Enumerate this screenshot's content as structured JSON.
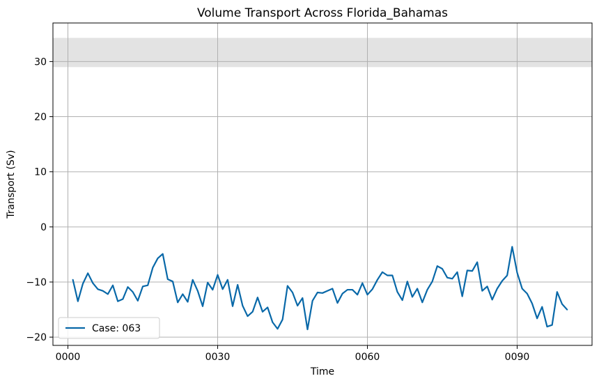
{
  "chart_data": {
    "type": "line",
    "title": "Volume Transport Across Florida_Bahamas",
    "xlabel": "Time",
    "ylabel": "Transport (Sv)",
    "xlim": [
      -3,
      105
    ],
    "ylim": [
      -21.5,
      37
    ],
    "x_ticks": [
      0,
      30,
      60,
      90
    ],
    "x_tick_labels": [
      "0000",
      "0030",
      "0060",
      "0090"
    ],
    "y_ticks": [
      -20,
      -10,
      0,
      10,
      20,
      30
    ],
    "y_tick_labels": [
      "−20",
      "−10",
      "0",
      "10",
      "20",
      "30"
    ],
    "grid": true,
    "legend_position": "lower-left",
    "band": {
      "y_from": 29,
      "y_to": 34.3,
      "color": "#e3e3e3"
    },
    "series": [
      {
        "name": "Case: 063",
        "color": "#0868a8",
        "x": [
          1,
          2,
          3,
          4,
          5,
          6,
          7,
          8,
          9,
          10,
          11,
          12,
          13,
          14,
          15,
          16,
          17,
          18,
          19,
          20,
          21,
          22,
          23,
          24,
          25,
          26,
          27,
          28,
          29,
          30,
          31,
          32,
          33,
          34,
          35,
          36,
          37,
          38,
          39,
          40,
          41,
          42,
          43,
          44,
          45,
          46,
          47,
          48,
          49,
          50,
          51,
          52,
          53,
          54,
          55,
          56,
          57,
          58,
          59,
          60,
          61,
          62,
          63,
          64,
          65,
          66,
          67,
          68,
          69,
          70,
          71,
          72,
          73,
          74,
          75,
          76,
          77,
          78,
          79,
          80,
          81,
          82,
          83,
          84,
          85,
          86,
          87,
          88,
          89,
          90,
          91,
          92,
          93,
          94,
          95,
          96,
          97,
          98,
          99,
          100
        ],
        "values": [
          -9.6,
          -13.5,
          -10.3,
          -8.4,
          -10.2,
          -11.3,
          -11.6,
          -12.2,
          -10.6,
          -13.5,
          -13.1,
          -10.9,
          -11.8,
          -13.4,
          -10.8,
          -10.6,
          -7.4,
          -5.7,
          -4.9,
          -9.5,
          -9.9,
          -13.7,
          -12.2,
          -13.6,
          -9.6,
          -11.6,
          -14.4,
          -10.1,
          -11.4,
          -8.7,
          -11.3,
          -9.6,
          -14.4,
          -10.5,
          -14.3,
          -16.2,
          -15.4,
          -12.8,
          -15.4,
          -14.6,
          -17.3,
          -18.5,
          -16.8,
          -10.7,
          -11.9,
          -14.3,
          -12.9,
          -18.6,
          -13.4,
          -11.9,
          -12.0,
          -11.6,
          -11.2,
          -13.8,
          -12.1,
          -11.4,
          -11.4,
          -12.3,
          -10.2,
          -12.3,
          -11.3,
          -9.6,
          -8.2,
          -8.8,
          -8.8,
          -11.8,
          -13.3,
          -9.9,
          -12.7,
          -11.2,
          -13.7,
          -11.4,
          -9.9,
          -7.1,
          -7.6,
          -9.2,
          -9.4,
          -8.2,
          -12.6,
          -7.9,
          -8.0,
          -6.4,
          -11.6,
          -10.8,
          -13.2,
          -11.2,
          -9.8,
          -8.8,
          -3.6,
          -8.3,
          -11.2,
          -12.1,
          -13.9,
          -16.6,
          -14.5,
          -18.1,
          -17.8,
          -11.8,
          -14.0,
          -15.0
        ]
      }
    ]
  }
}
